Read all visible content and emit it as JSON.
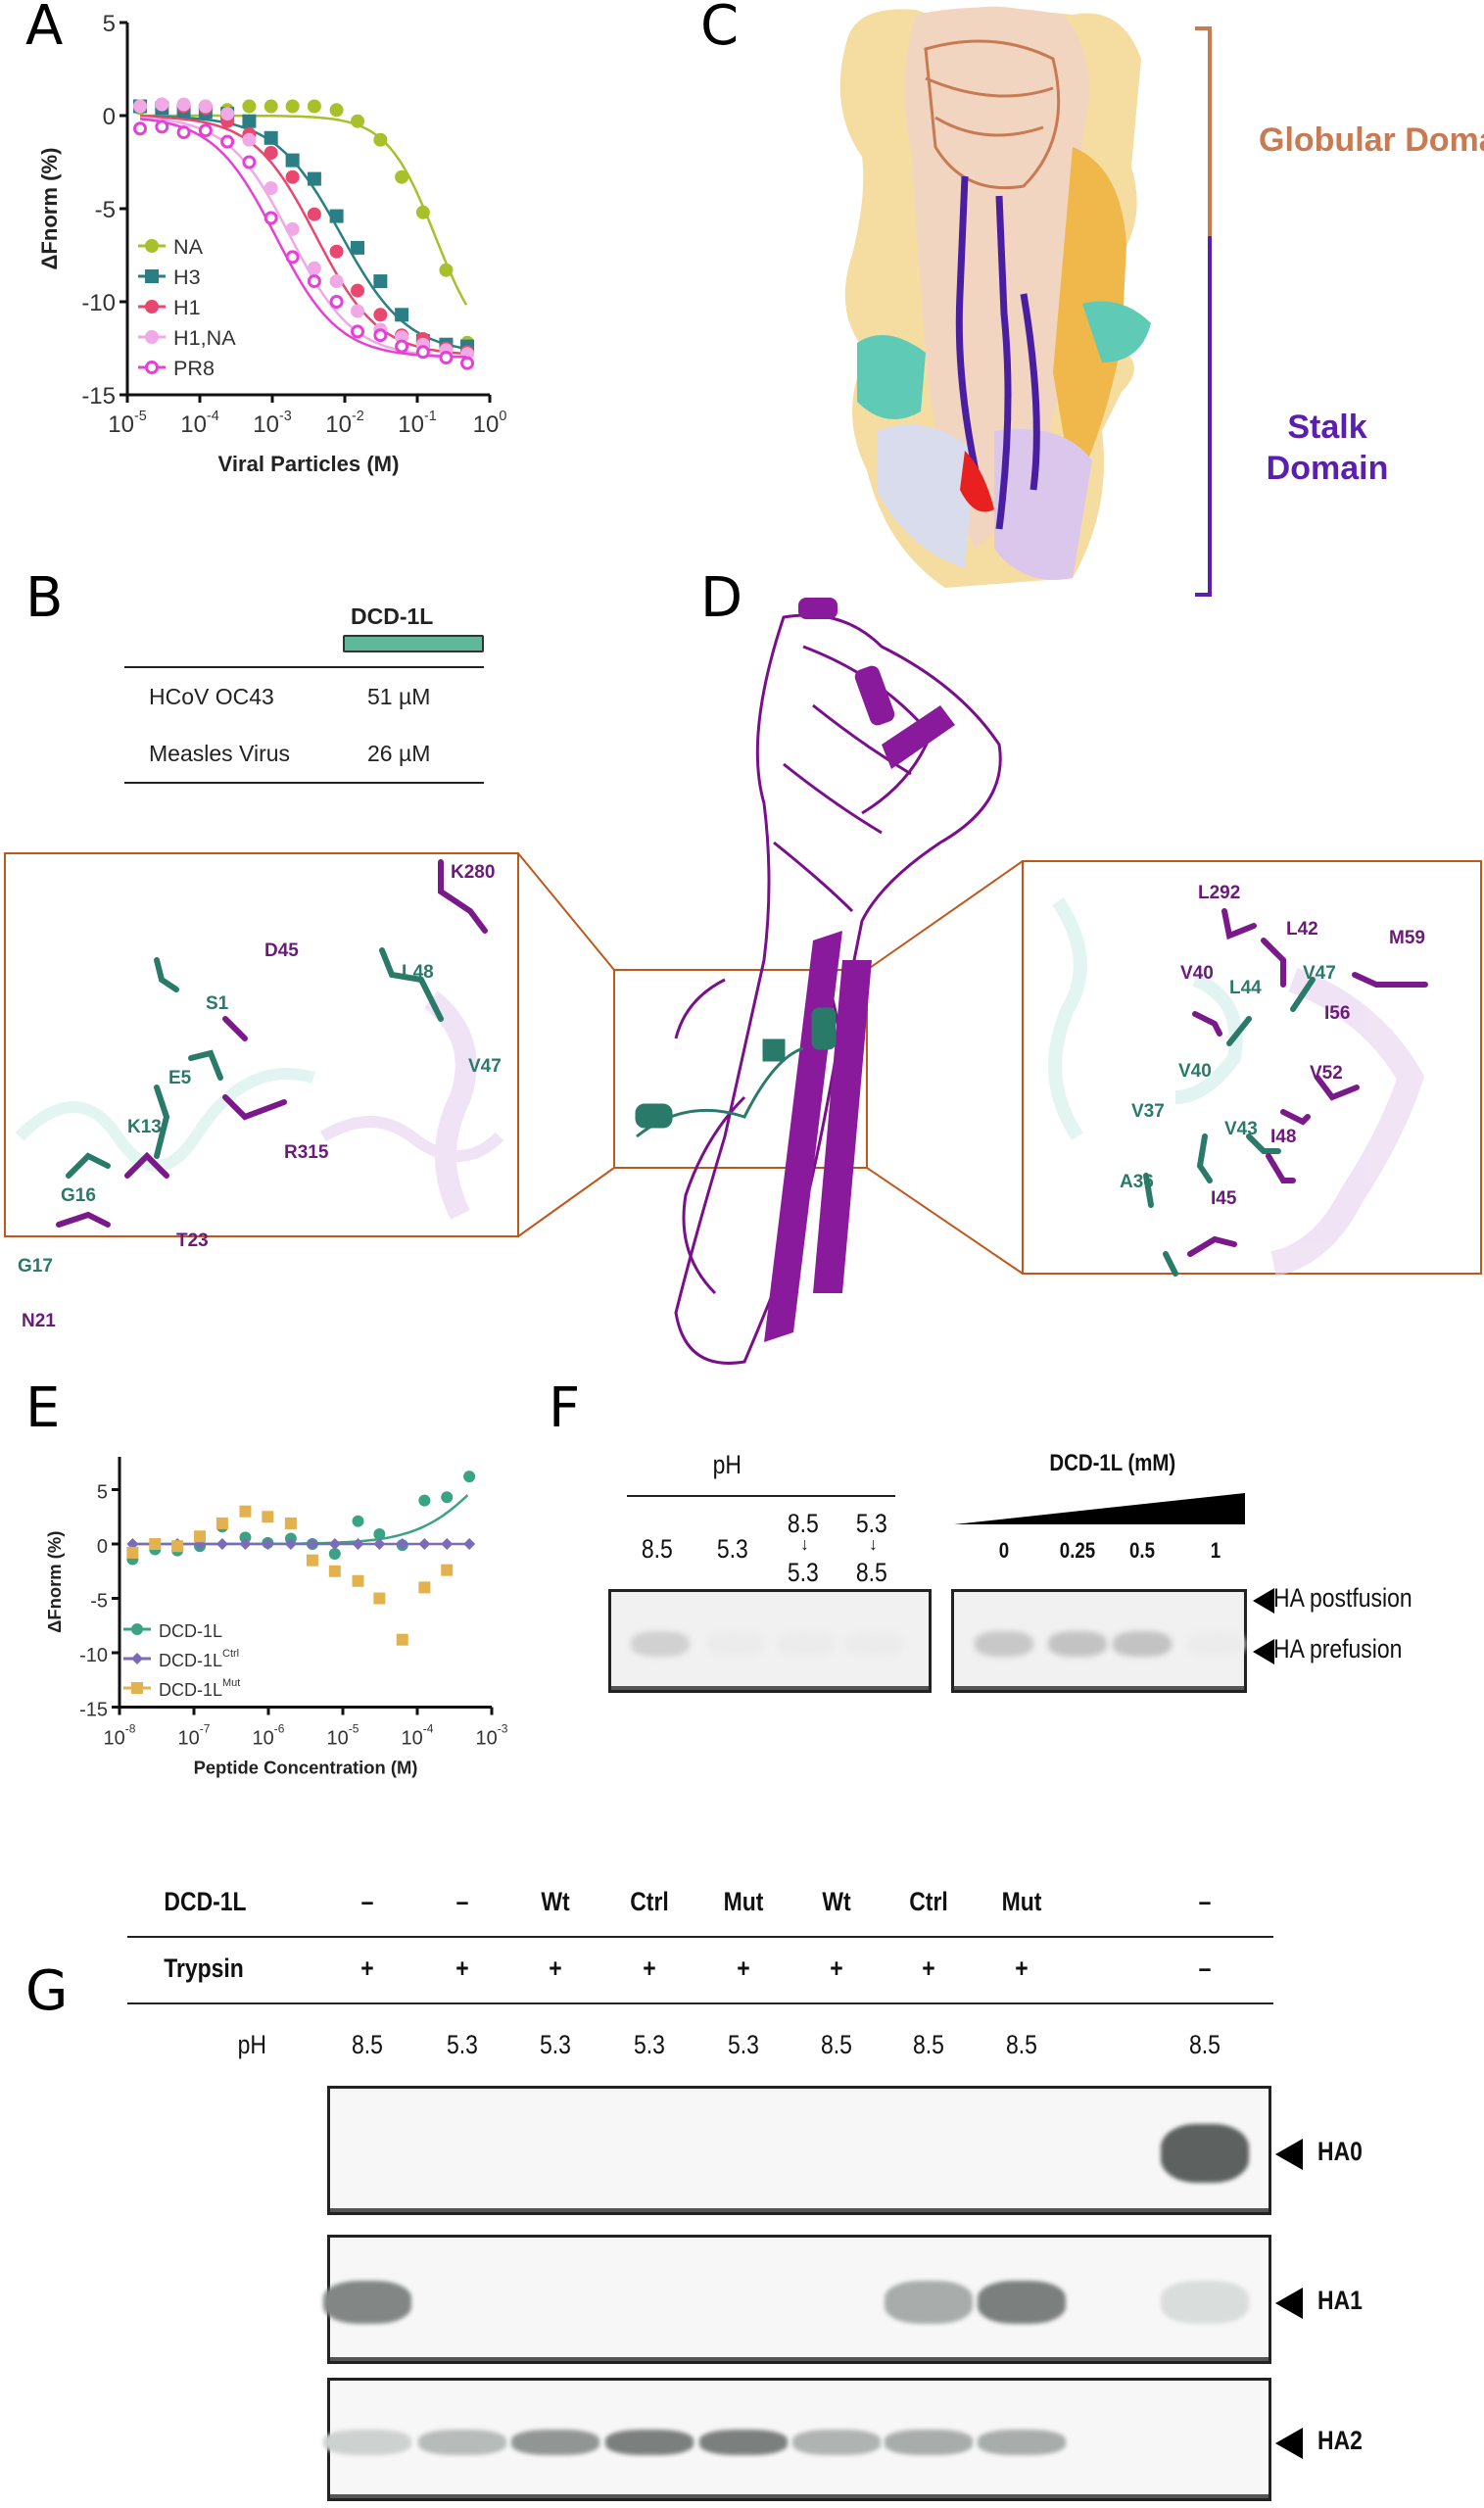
{
  "panels": {
    "A": "A",
    "B": "B",
    "C": "C",
    "D": "D",
    "E": "E",
    "F": "F",
    "G": "G"
  },
  "colors": {
    "NA": "#a8c02a",
    "H3": "#2a7f86",
    "H1": "#e8476f",
    "H1,NA": "#f0a8e6",
    "PR8": "#e640d8",
    "DCD-1L": "#3aa383",
    "DCD-1L Ctrl": "#7c6bb8",
    "DCD-1L Mut": "#e3b24e",
    "globular": "#c87a52",
    "stalk": "#5a1fb0",
    "inset_frame": "#c0581c"
  },
  "panel_c": {
    "globular_label": "Globular Domain",
    "stalk_label": "Stalk Domain"
  },
  "panel_b": {
    "peptide": "DCD-1L",
    "rows": [
      {
        "virus": "HCoV OC43",
        "value": "51 µM"
      },
      {
        "virus": "Measles Virus",
        "value": "26 µM"
      }
    ]
  },
  "panel_d": {
    "left_inset_residues": [
      {
        "label": "K280",
        "chain": "purple"
      },
      {
        "label": "D45",
        "chain": "purple"
      },
      {
        "label": "L48",
        "chain": "teal"
      },
      {
        "label": "S1",
        "chain": "teal"
      },
      {
        "label": "V47",
        "chain": "teal"
      },
      {
        "label": "E5",
        "chain": "teal"
      },
      {
        "label": "K13",
        "chain": "teal"
      },
      {
        "label": "R315",
        "chain": "purple"
      },
      {
        "label": "G16",
        "chain": "teal"
      },
      {
        "label": "T23",
        "chain": "purple"
      },
      {
        "label": "G17",
        "chain": "teal"
      },
      {
        "label": "N21",
        "chain": "purple"
      }
    ],
    "right_inset_residues": [
      {
        "label": "L292",
        "chain": "purple"
      },
      {
        "label": "L42",
        "chain": "purple"
      },
      {
        "label": "M59",
        "chain": "purple"
      },
      {
        "label": "V40",
        "chain": "purple"
      },
      {
        "label": "V47",
        "chain": "teal"
      },
      {
        "label": "L44",
        "chain": "teal"
      },
      {
        "label": "I56",
        "chain": "purple"
      },
      {
        "label": "V52",
        "chain": "purple"
      },
      {
        "label": "V40",
        "chain": "teal"
      },
      {
        "label": "V37",
        "chain": "teal"
      },
      {
        "label": "V43",
        "chain": "teal"
      },
      {
        "label": "I48",
        "chain": "purple"
      },
      {
        "label": "A36",
        "chain": "teal"
      },
      {
        "label": "I45",
        "chain": "purple"
      }
    ]
  },
  "panel_f": {
    "ph_header": "pH",
    "ph_lanes": [
      {
        "top": "",
        "bottom": "8.5"
      },
      {
        "top": "",
        "bottom": "5.3"
      },
      {
        "top": "8.5",
        "arrow": "↓",
        "bottom": "5.3"
      },
      {
        "top": "5.3",
        "arrow": "↓",
        "bottom": "8.5"
      }
    ],
    "dcd_header": "DCD-1L (mM)",
    "dcd_lanes": [
      "0",
      "0.25",
      "0.5",
      "1"
    ],
    "markers": [
      "HA postfusion",
      "HA prefusion"
    ],
    "prefusion_band_intensity": [
      0.35,
      0.05,
      0.05,
      0.05,
      0.45,
      0.5,
      0.5,
      0.05
    ]
  },
  "panel_g": {
    "rows": [
      {
        "label": "DCD-1L",
        "values": [
          "–",
          "–",
          "Wt",
          "Ctrl",
          "Mut",
          "Wt",
          "Ctrl",
          "Mut",
          "–"
        ]
      },
      {
        "label": "Trypsin",
        "values": [
          "+",
          "+",
          "+",
          "+",
          "+",
          "+",
          "+",
          "+",
          "–"
        ]
      },
      {
        "label": "pH",
        "values": [
          "8.5",
          "5.3",
          "5.3",
          "5.3",
          "5.3",
          "8.5",
          "8.5",
          "8.5",
          "8.5"
        ]
      }
    ],
    "gels": [
      {
        "marker": "HA0",
        "intensity": [
          0,
          0,
          0,
          0,
          0,
          0,
          0,
          0,
          0.95
        ]
      },
      {
        "marker": "HA1",
        "intensity": [
          0.7,
          0,
          0,
          0,
          0,
          0,
          0.45,
          0.75,
          0.12
        ]
      },
      {
        "marker": "HA2",
        "intensity": [
          0.2,
          0.35,
          0.6,
          0.75,
          0.75,
          0.4,
          0.45,
          0.45,
          0
        ]
      }
    ]
  },
  "chart_data": [
    {
      "id": "A",
      "type": "scatter",
      "xlabel": "Viral Particles (M)",
      "ylabel": "ΔFnorm (%)",
      "xscale": "log",
      "xlim": [
        1e-05,
        1
      ],
      "ylim": [
        -15,
        5
      ],
      "xticks": [
        "10-5",
        "10-4",
        "10-3",
        "10-2",
        "10-1",
        "100"
      ],
      "xtick_exp": [
        -5,
        -4,
        -3,
        -2,
        -1,
        0
      ],
      "yticks": [
        5,
        0,
        -5,
        -10,
        -15
      ],
      "legend": "bottom-left",
      "x": [
        1.5e-05,
        3e-05,
        6e-05,
        0.00012,
        0.00024,
        0.00048,
        0.00096,
        0.0019,
        0.0038,
        0.0077,
        0.015,
        0.031,
        0.061,
        0.12,
        0.25,
        0.49
      ],
      "series": [
        {
          "name": "NA",
          "marker": "circle",
          "values": [
            0.4,
            0.5,
            0.5,
            0.5,
            0.3,
            0.5,
            0.5,
            0.5,
            0.5,
            0.3,
            -0.3,
            -1.3,
            -3.3,
            -5.2,
            -8.3,
            -12.2
          ],
          "fit": {
            "top": 0,
            "bottom": -13,
            "logEC50": -0.75,
            "hill": 1.3
          }
        },
        {
          "name": "H3",
          "marker": "square",
          "values": [
            0.5,
            0.4,
            0.3,
            0.2,
            0.1,
            -0.3,
            -1.2,
            -2.4,
            -3.4,
            -5.4,
            -7.1,
            -8.9,
            -10.7,
            -12.1,
            -12.3,
            -12.4
          ],
          "fit": {
            "top": 0,
            "bottom": -12.8,
            "logEC50": -2.05,
            "hill": 0.95
          }
        },
        {
          "name": "H1",
          "marker": "circle",
          "values": [
            0.5,
            0.6,
            0.5,
            0.4,
            -0.3,
            -1.0,
            -2.0,
            -3.3,
            -5.3,
            -7.3,
            -9.4,
            -10.7,
            -11.8,
            -12.0,
            -12.5,
            -12.7
          ],
          "fit": {
            "top": 0,
            "bottom": -12.9,
            "logEC50": -2.4,
            "hill": 1.0
          }
        },
        {
          "name": "H1,NA",
          "marker": "circle",
          "values": [
            0.5,
            0.6,
            0.6,
            0.5,
            0.1,
            -1.3,
            -3.9,
            -6.1,
            -8.2,
            -8.9,
            -10.5,
            -11.5,
            -11.9,
            -12.3,
            -12.6,
            -12.8
          ],
          "fit": {
            "top": 0,
            "bottom": -13,
            "logEC50": -2.75,
            "hill": 1.0
          }
        },
        {
          "name": "PR8",
          "marker": "open-circle",
          "values": [
            -0.7,
            -0.6,
            -0.9,
            -0.8,
            -1.4,
            -2.5,
            -5.5,
            -7.6,
            -8.9,
            -10.0,
            -11.6,
            -11.8,
            -12.4,
            -12.7,
            -13.0,
            -13.3
          ],
          "fit": {
            "top": 0,
            "bottom": -13,
            "logEC50": -2.95,
            "hill": 1.0
          }
        }
      ]
    },
    {
      "id": "E",
      "type": "scatter",
      "xlabel": "Peptide Concentration (M)",
      "ylabel": "ΔFnorm (%)",
      "xscale": "log",
      "xlim": [
        1e-08,
        0.001
      ],
      "ylim": [
        -15,
        7
      ],
      "xticks": [
        "10-8",
        "10-7",
        "10-6",
        "10-5",
        "10-4",
        "10-3"
      ],
      "xtick_exp": [
        -8,
        -7,
        -6,
        -5,
        -4,
        -3
      ],
      "yticks": [
        5,
        0,
        -5,
        -10,
        -15
      ],
      "legend": "bottom-left",
      "x": [
        1.5e-08,
        3e-08,
        6e-08,
        1.2e-07,
        2.4e-07,
        4.9e-07,
        9.8e-07,
        2e-06,
        3.9e-06,
        7.8e-06,
        1.6e-05,
        3.1e-05,
        6.3e-05,
        0.000125,
        0.00025,
        0.0005
      ],
      "series": [
        {
          "name": "DCD-1L",
          "sup": "",
          "marker": "circle",
          "values": [
            -1.4,
            -0.5,
            -0.6,
            -0.2,
            1.6,
            0.6,
            0.1,
            0.5,
            0,
            -0.9,
            2.1,
            0.9,
            -0.1,
            4.0,
            4.3,
            6.2
          ],
          "fit": {
            "top": 12,
            "bottom": 0,
            "logEC50": -3.1,
            "hill": 1.0
          }
        },
        {
          "name": "DCD-1L",
          "sup": "Ctrl",
          "marker": "diamond",
          "values": [
            0,
            0,
            0,
            0,
            0,
            0,
            0,
            0,
            0,
            0,
            0,
            0,
            0,
            0,
            0,
            0
          ],
          "fit": {
            "flat": 0
          }
        },
        {
          "name": "DCD-1L",
          "sup": "Mut",
          "marker": "square",
          "values": [
            -0.8,
            0,
            -0.2,
            0.7,
            1.9,
            3.0,
            2.5,
            1.9,
            -1.5,
            -2.5,
            -3.4,
            -5.0,
            -8.8,
            -4.0,
            -2.4,
            null
          ]
        }
      ]
    }
  ]
}
